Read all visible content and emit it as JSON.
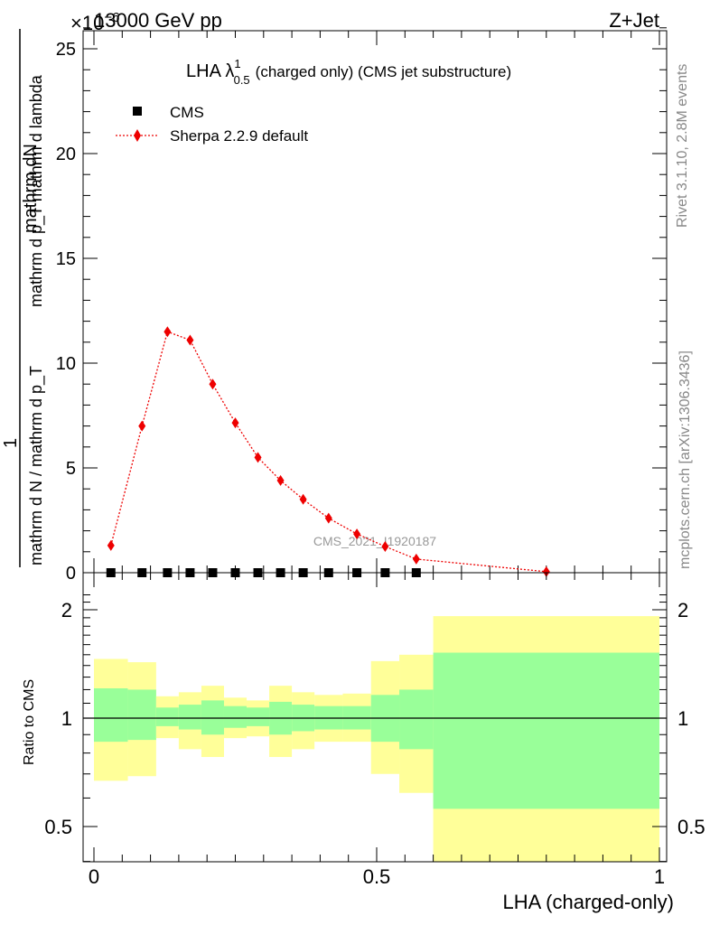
{
  "header": {
    "energy": "13000 GeV pp",
    "process": "Z+Jet",
    "multiplier": "×10",
    "multiplier_exp": "−6"
  },
  "side_text": {
    "rivet": "Rivet 3.1.10,  2.8M events",
    "site": "mcplots.cern.ch [arXiv:1306.3436]"
  },
  "watermark": "CMS_2021_I1920187",
  "colors": {
    "mc": "#ee0000",
    "data": "#000000",
    "band_inner": "#99ff99",
    "band_outer": "#ffff99"
  },
  "chart_data": [
    {
      "type": "line",
      "title": "LHA λ^1_0.5 (charged only) (CMS jet substructure)",
      "title_parts": {
        "main": "LHA λ",
        "sup": "1",
        "sub": "0.5",
        "rest": "(charged only) (CMS jet substructure)"
      },
      "ylabel_parts": {
        "num_top": "mathrm dN",
        "num_bottom": "mathrm d p_T mathrm d lambda",
        "den_top": "1",
        "den_bottom": "mathrm d N / mathrm d p_T"
      },
      "xlim": [
        0,
        1
      ],
      "ylim": [
        0,
        26
      ],
      "yticks": [
        0,
        5,
        10,
        15,
        20,
        25
      ],
      "ytick_labels": [
        "0",
        "5",
        "10",
        "15",
        "20",
        "25"
      ],
      "legend_position": "top-left",
      "series": [
        {
          "name": "CMS",
          "marker": "square",
          "x": [
            0.03,
            0.085,
            0.13,
            0.17,
            0.21,
            0.25,
            0.29,
            0.33,
            0.37,
            0.415,
            0.465,
            0.515,
            0.57
          ],
          "y": [
            0,
            0,
            0,
            0,
            0,
            0,
            0,
            0,
            0,
            0,
            0,
            0,
            0
          ]
        },
        {
          "name": "Sherpa 2.2.9 default",
          "marker": "diamond",
          "x": [
            0.03,
            0.085,
            0.13,
            0.17,
            0.21,
            0.25,
            0.29,
            0.33,
            0.37,
            0.415,
            0.465,
            0.515,
            0.57,
            0.8
          ],
          "y": [
            1.3,
            7.0,
            11.5,
            11.1,
            9.0,
            7.15,
            5.5,
            4.4,
            3.5,
            2.6,
            1.85,
            1.25,
            0.65,
            0.05
          ]
        }
      ]
    },
    {
      "type": "area",
      "xlabel": "LHA (charged-only)",
      "ylabel": "Ratio to CMS",
      "xlim": [
        0,
        1
      ],
      "ylim": [
        0.35,
        2.3
      ],
      "yticks": [
        0.5,
        1,
        2
      ],
      "ytick_labels": [
        "0.5",
        "1",
        "2"
      ],
      "xticks": [
        0,
        0.5,
        1
      ],
      "xtick_labels": [
        "0",
        "0.5",
        "1"
      ],
      "bins": [
        {
          "lo": 0.0,
          "hi": 0.06,
          "inner": [
            0.86,
            1.21
          ],
          "outer": [
            0.67,
            1.46
          ]
        },
        {
          "lo": 0.06,
          "hi": 0.11,
          "inner": [
            0.87,
            1.2
          ],
          "outer": [
            0.69,
            1.43
          ]
        },
        {
          "lo": 0.11,
          "hi": 0.15,
          "inner": [
            0.95,
            1.07
          ],
          "outer": [
            0.88,
            1.15
          ]
        },
        {
          "lo": 0.15,
          "hi": 0.19,
          "inner": [
            0.93,
            1.09
          ],
          "outer": [
            0.82,
            1.18
          ]
        },
        {
          "lo": 0.19,
          "hi": 0.23,
          "inner": [
            0.9,
            1.12
          ],
          "outer": [
            0.78,
            1.23
          ]
        },
        {
          "lo": 0.23,
          "hi": 0.27,
          "inner": [
            0.94,
            1.08
          ],
          "outer": [
            0.88,
            1.14
          ]
        },
        {
          "lo": 0.27,
          "hi": 0.31,
          "inner": [
            0.95,
            1.07
          ],
          "outer": [
            0.89,
            1.12
          ]
        },
        {
          "lo": 0.31,
          "hi": 0.35,
          "inner": [
            0.9,
            1.11
          ],
          "outer": [
            0.78,
            1.23
          ]
        },
        {
          "lo": 0.35,
          "hi": 0.39,
          "inner": [
            0.92,
            1.09
          ],
          "outer": [
            0.82,
            1.18
          ]
        },
        {
          "lo": 0.39,
          "hi": 0.44,
          "inner": [
            0.93,
            1.08
          ],
          "outer": [
            0.86,
            1.16
          ]
        },
        {
          "lo": 0.44,
          "hi": 0.49,
          "inner": [
            0.93,
            1.08
          ],
          "outer": [
            0.86,
            1.17
          ]
        },
        {
          "lo": 0.49,
          "hi": 0.54,
          "inner": [
            0.86,
            1.16
          ],
          "outer": [
            0.7,
            1.44
          ]
        },
        {
          "lo": 0.54,
          "hi": 0.6,
          "inner": [
            0.82,
            1.2
          ],
          "outer": [
            0.62,
            1.5
          ]
        },
        {
          "lo": 0.6,
          "hi": 1.0,
          "inner": [
            0.56,
            1.52
          ],
          "outer": [
            0.35,
            1.92
          ]
        }
      ],
      "reference_line": 1
    }
  ]
}
